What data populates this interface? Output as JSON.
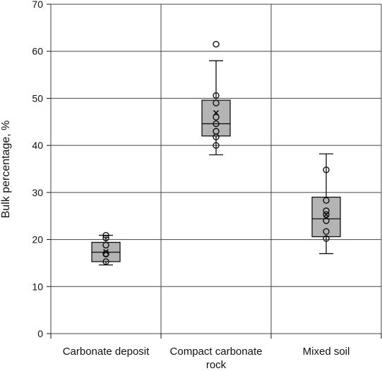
{
  "chart_data": {
    "type": "box",
    "ylabel": "Bulk percentage, %",
    "ylim": [
      0,
      70
    ],
    "yticks": [
      0,
      10,
      20,
      30,
      40,
      50,
      60,
      70
    ],
    "ytick_labels": [
      "0",
      "10",
      "20",
      "30",
      "40",
      "50",
      "60",
      "70"
    ],
    "grid": true,
    "categories": [
      {
        "lines": [
          "Carbonate deposit"
        ]
      },
      {
        "lines": [
          "Compact carbonate",
          "rock"
        ]
      },
      {
        "lines": [
          "Mixed soil"
        ]
      }
    ],
    "boxes": [
      {
        "whisker_low": 14.6,
        "q1": 15.3,
        "median": 17.3,
        "q3": 19.4,
        "whisker_high": 20.9,
        "mean": 17.4,
        "points": [
          20.9,
          20.3,
          18.8,
          17.0,
          16.9,
          15.3
        ]
      },
      {
        "whisker_low": 38.0,
        "q1": 42.0,
        "median": 44.6,
        "q3": 49.6,
        "whisker_high": 58.0,
        "mean": 46.9,
        "points": [
          61.5,
          50.6,
          49.0,
          46.0,
          44.6,
          43.0,
          41.8,
          40.0
        ]
      },
      {
        "whisker_low": 17.0,
        "q1": 20.6,
        "median": 24.4,
        "q3": 29.0,
        "whisker_high": 38.2,
        "mean": 25.3,
        "points": [
          34.8,
          28.3,
          26.1,
          25.3,
          24.0,
          21.7,
          20.2
        ]
      }
    ],
    "colors": {
      "box": "#b4b4b4",
      "line": "#111111",
      "grid": "#444444"
    }
  }
}
